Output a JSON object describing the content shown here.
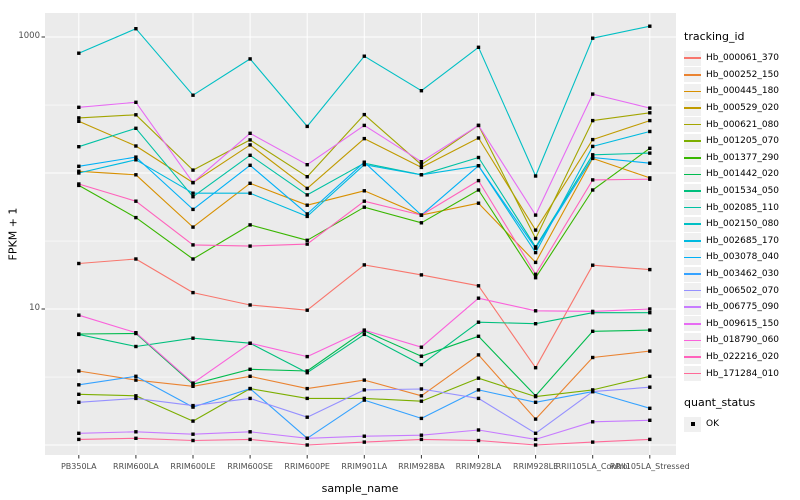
{
  "figure": {
    "y_axis_label": "FPKM + 1",
    "x_axis_label": "sample_name",
    "y_tick_labels": [
      "1000",
      "10"
    ],
    "legend": {
      "tracking_title": "tracking_id",
      "quant_title": "quant_status",
      "quant_ok_label": "OK",
      "quant_marker": "black-square"
    },
    "colors": {
      "panel_bg": "#EBEBEB",
      "grid": "#FFFFFF",
      "key_bg": "#F0F0F0",
      "point": "#000000",
      "tick_text": "#4D4D4D",
      "axis_title_text": "#000000",
      "tick_mark": "#333333"
    }
  },
  "chart_data": {
    "type": "line",
    "title": "",
    "xlabel": "sample_name",
    "ylabel": "FPKM + 1",
    "y_scale": "log10",
    "ylim": [
      1,
      1500
    ],
    "y_major_ticks": [
      10,
      1000
    ],
    "y_gridlines_major": [
      1,
      10,
      100,
      1000
    ],
    "y_gridlines_minor": [
      3.16,
      31.6,
      316
    ],
    "grid": true,
    "legend_position": "right",
    "point_marker": "black square (quant_status = OK) at every data point",
    "categories": [
      "PB350LA",
      "RRIM600LA",
      "RRIM600LE",
      "RRIM600SE",
      "RRIM600PE",
      "RRIM901LA",
      "RRIM928BA",
      "RRIM928LA",
      "RRIM928LE",
      "RRII105LA_Control",
      "RRII105LA_Stressed"
    ],
    "series": [
      {
        "name": "Hb_000061_370",
        "color": "#F8766D",
        "values": [
          21.6,
          23.3,
          13.2,
          10.7,
          9.8,
          21.1,
          17.8,
          14.8,
          3.7,
          21,
          19.5
        ]
      },
      {
        "name": "Hb_000252_150",
        "color": "#EA8331",
        "values": [
          3.5,
          3.0,
          2.7,
          3.2,
          2.6,
          3.0,
          2.3,
          4.6,
          1.55,
          4.4,
          4.9
        ]
      },
      {
        "name": "Hb_000445_180",
        "color": "#D89000",
        "values": [
          103,
          97,
          40,
          84,
          58,
          74,
          49,
          60,
          22,
          128,
          92
        ]
      },
      {
        "name": "Hb_000529_020",
        "color": "#C09B00",
        "values": [
          240,
          158,
          85,
          161,
          77,
          179,
          110,
          181,
          38,
          176,
          243
        ]
      },
      {
        "name": "Hb_000621_080",
        "color": "#A3A500",
        "values": [
          254,
          268,
          105,
          175,
          94,
          269,
          115,
          224,
          33,
          243,
          277
        ]
      },
      {
        "name": "Hb_001205_070",
        "color": "#7CAE00",
        "values": [
          2.36,
          2.3,
          1.5,
          2.6,
          2.2,
          2.2,
          2.1,
          3.1,
          2.27,
          2.54,
          3.2
        ]
      },
      {
        "name": "Hb_001377_290",
        "color": "#39B600",
        "values": [
          81,
          47,
          23.3,
          41.5,
          32,
          56,
          43,
          75,
          17,
          75,
          152
        ]
      },
      {
        "name": "Hb_001442_020",
        "color": "#00BB4E",
        "values": [
          6.55,
          6.6,
          2.8,
          3.6,
          3.5,
          6.9,
          4.5,
          6.3,
          2.3,
          6.85,
          7.0
        ]
      },
      {
        "name": "Hb_001534_050",
        "color": "#00BF7D",
        "values": [
          6.5,
          5.3,
          6.1,
          5.6,
          3.4,
          6.5,
          3.9,
          8.0,
          7.8,
          9.4,
          9.4
        ]
      },
      {
        "name": "Hb_002085_110",
        "color": "#00C1A3",
        "values": [
          156,
          213,
          67,
          135,
          69,
          118,
          97,
          130,
          28.6,
          136,
          140
        ]
      },
      {
        "name": "Hb_002150_080",
        "color": "#00BFC4",
        "values": [
          760,
          1150,
          373,
          690,
          220,
          722,
          403,
          840,
          95,
          980,
          1200
        ]
      },
      {
        "name": "Hb_002685_170",
        "color": "#00BAE0",
        "values": [
          100,
          125,
          71,
          71,
          48,
          115,
          97,
          113,
          26,
          157,
          202
        ]
      },
      {
        "name": "Hb_003078_040",
        "color": "#00B0F6",
        "values": [
          112,
          131,
          54,
          114,
          50,
          120,
          49,
          113,
          28,
          130,
          118
        ]
      },
      {
        "name": "Hb_003462_030",
        "color": "#35A2FF",
        "values": [
          2.77,
          3.2,
          1.9,
          2.6,
          1.12,
          2.14,
          1.57,
          2.54,
          2.06,
          2.47,
          1.86
        ]
      },
      {
        "name": "Hb_006502_070",
        "color": "#9590FF",
        "values": [
          2.06,
          2.2,
          1.95,
          2.2,
          1.6,
          2.54,
          2.58,
          2.2,
          1.22,
          2.47,
          2.66
        ]
      },
      {
        "name": "Hb_006775_090",
        "color": "#C77CFF",
        "values": [
          1.22,
          1.25,
          1.2,
          1.25,
          1.12,
          1.16,
          1.18,
          1.29,
          1.1,
          1.48,
          1.52
        ]
      },
      {
        "name": "Hb_009615_150",
        "color": "#E76BF3",
        "values": [
          304,
          331,
          85,
          196,
          115,
          224,
          121,
          224,
          49,
          380,
          300
        ]
      },
      {
        "name": "Hb_018790_060",
        "color": "#FA62DB",
        "values": [
          9.0,
          6.7,
          2.85,
          5.6,
          4.47,
          7.0,
          5.24,
          12.0,
          9.7,
          9.6,
          10.0
        ]
      },
      {
        "name": "Hb_022216_020",
        "color": "#FF62BC",
        "values": [
          83,
          62,
          29.6,
          29,
          30,
          62,
          49,
          88,
          18,
          89,
          90
        ]
      },
      {
        "name": "Hb_171284_010",
        "color": "#FF6A98",
        "values": [
          1.1,
          1.12,
          1.08,
          1.1,
          1.0,
          1.05,
          1.1,
          1.08,
          1.0,
          1.05,
          1.1
        ]
      }
    ]
  }
}
